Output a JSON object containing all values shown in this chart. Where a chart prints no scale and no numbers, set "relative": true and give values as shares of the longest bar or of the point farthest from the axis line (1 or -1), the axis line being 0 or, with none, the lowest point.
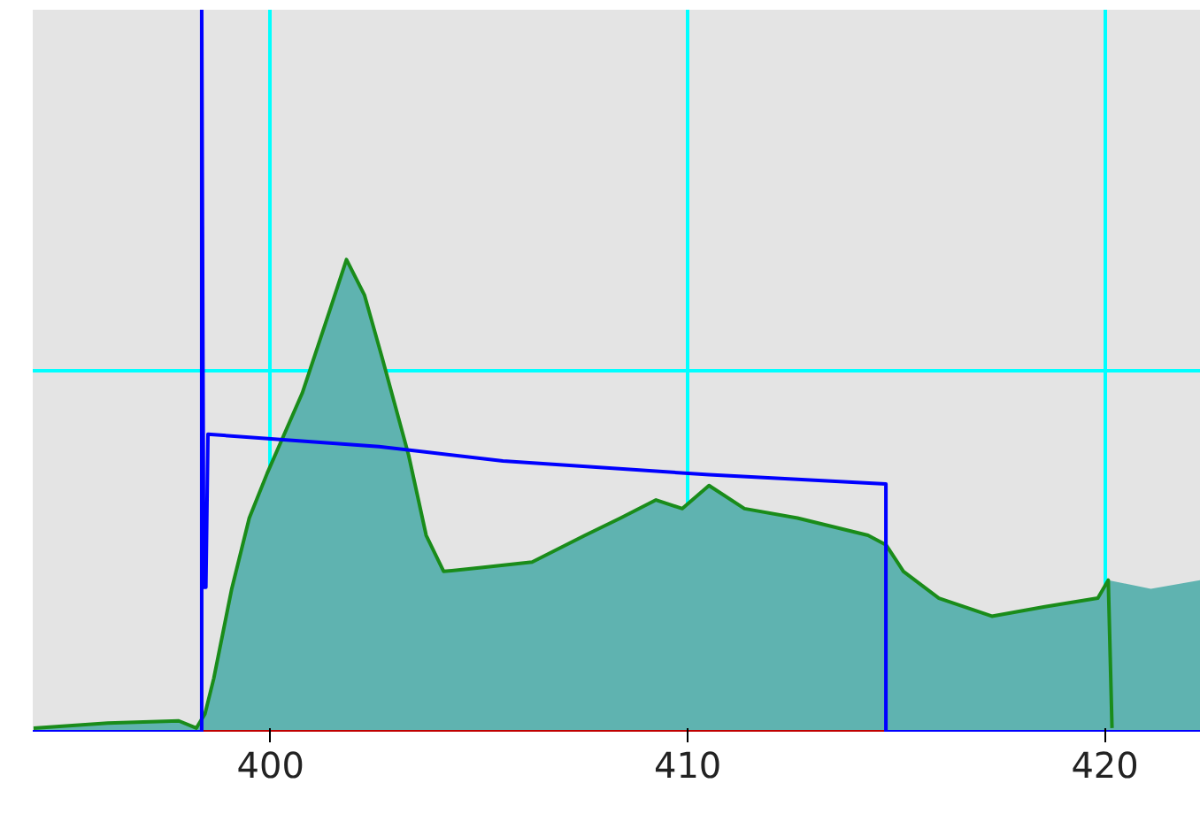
{
  "chart_data": {
    "type": "area",
    "relative": true,
    "xlim": [
      394.3,
      422.3
    ],
    "xticks": [
      400,
      410,
      420
    ],
    "grid": true,
    "series": [
      {
        "color": "#5fb3b0",
        "x": [
          394.32,
          396.1,
          397.8,
          398.22,
          398.43,
          398.64,
          399.07,
          399.49,
          399.92,
          400.76,
          401.4,
          401.82,
          402.25,
          402.67,
          403.31,
          403.73,
          404.15,
          405.0,
          406.27,
          407.54,
          408.39,
          409.24,
          409.87,
          410.51,
          411.36,
          412.63,
          414.32,
          414.75,
          415.17,
          416.02,
          417.29,
          418.56,
          419.83,
          420.08,
          421.1,
          422.3
        ],
        "values": [
          0.005,
          0.012,
          0.015,
          0.005,
          0.025,
          0.074,
          0.198,
          0.296,
          0.358,
          0.469,
          0.58,
          0.654,
          0.605,
          0.519,
          0.383,
          0.272,
          0.222,
          0.227,
          0.235,
          0.272,
          0.296,
          0.321,
          0.309,
          0.341,
          0.309,
          0.296,
          0.272,
          0.259,
          0.222,
          0.185,
          0.16,
          0.173,
          0.185,
          0.21,
          0.198,
          0.21
        ]
      },
      {
        "type": "line",
        "color": "#1a8c1a",
        "x": [
          394.32,
          396.1,
          397.8,
          398.22,
          398.43,
          398.64,
          399.07,
          399.49,
          399.92,
          400.76,
          401.4,
          401.82,
          402.25,
          402.67,
          403.31,
          403.73,
          404.15,
          405.0,
          406.27,
          407.54,
          408.39,
          409.24,
          409.87,
          410.51,
          411.36,
          412.63,
          414.32,
          414.75,
          415.17,
          416.02,
          417.29,
          418.56,
          419.83,
          420.08,
          420.17
        ],
        "values": [
          0.005,
          0.012,
          0.015,
          0.005,
          0.025,
          0.074,
          0.198,
          0.296,
          0.358,
          0.469,
          0.58,
          0.654,
          0.605,
          0.519,
          0.383,
          0.272,
          0.222,
          0.227,
          0.235,
          0.272,
          0.296,
          0.321,
          0.309,
          0.341,
          0.309,
          0.296,
          0.272,
          0.259,
          0.222,
          0.185,
          0.16,
          0.173,
          0.185,
          0.21,
          0.005
        ]
      },
      {
        "type": "line",
        "color": "#c00000",
        "x": [
          398.35,
          414.75
        ],
        "values": [
          0,
          0
        ]
      },
      {
        "type": "line",
        "color": "#0000ff",
        "x": [
          394.3,
          398.35,
          398.35,
          398.4,
          398.45,
          398.5,
          402.6,
          405.57,
          410.51,
          414.75,
          414.75,
          422.3
        ],
        "values": [
          0,
          0,
          1,
          0.2,
          0.2,
          0.412,
          0.395,
          0.375,
          0.356,
          0.343,
          0,
          0
        ]
      }
    ]
  }
}
